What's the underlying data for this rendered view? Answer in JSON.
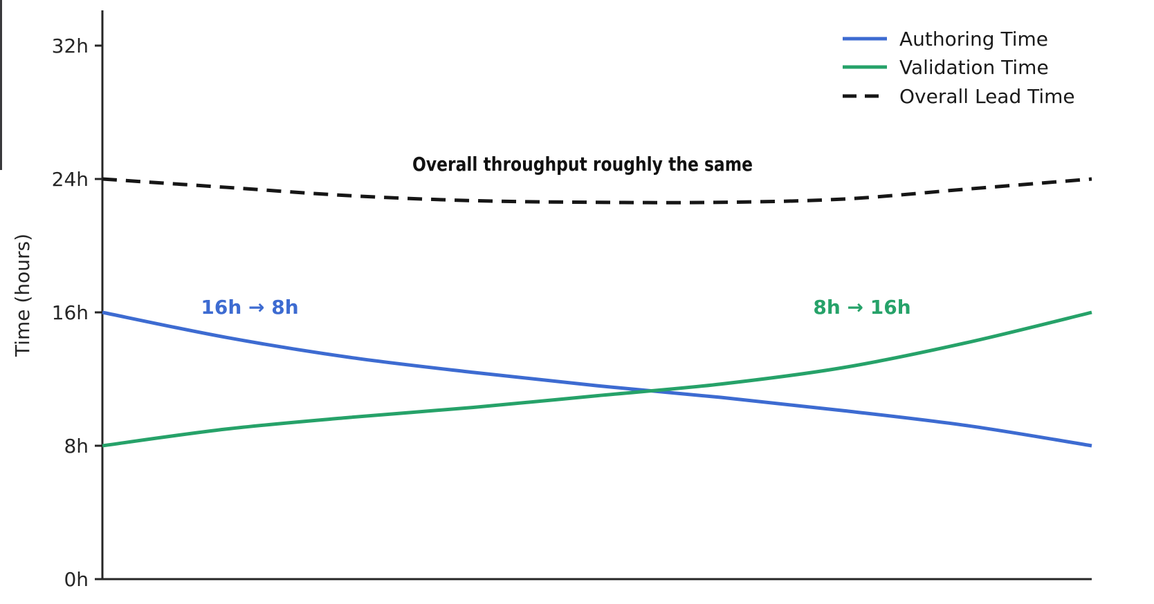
{
  "chart_data": {
    "type": "line",
    "title": "",
    "xlabel": "",
    "ylabel": "Time (hours)",
    "ylim": [
      0,
      34
    ],
    "grid": false,
    "x_tick_labels": [],
    "y_ticks": [
      {
        "value": 0,
        "label": "0h"
      },
      {
        "value": 8,
        "label": "8h"
      },
      {
        "value": 16,
        "label": "16h"
      },
      {
        "value": 24,
        "label": "24h"
      },
      {
        "value": 32,
        "label": "32h"
      }
    ],
    "x": [
      0,
      0.125,
      0.25,
      0.375,
      0.5,
      0.625,
      0.75,
      0.875,
      1
    ],
    "series": [
      {
        "name": "Authoring Time",
        "color": "#3d6bd1",
        "style": "solid",
        "values": [
          16,
          14.5,
          13.3,
          12.4,
          11.6,
          10.9,
          10.1,
          9.2,
          8
        ]
      },
      {
        "name": "Validation Time",
        "color": "#26a269",
        "style": "solid",
        "values": [
          8,
          9.0,
          9.7,
          10.3,
          11.0,
          11.7,
          12.7,
          14.2,
          16
        ]
      },
      {
        "name": "Overall Lead Time",
        "color": "#161616",
        "style": "dashed",
        "values": [
          24,
          23.5,
          23.0,
          22.7,
          22.6,
          22.6,
          22.8,
          23.4,
          24
        ]
      }
    ],
    "legend": {
      "position": "top-right",
      "frame": false
    },
    "annotations": [
      {
        "text": "Overall throughput roughly the same",
        "color": "#111111",
        "weight": "bold"
      },
      {
        "text": "16h → 8h",
        "color": "#3d6bd1",
        "weight": "bold"
      },
      {
        "text": "8h → 16h",
        "color": "#26a269",
        "weight": "bold"
      }
    ]
  },
  "colors": {
    "background": "#ffffff",
    "axis": "#262626",
    "legend_text": "#1a1a1a"
  }
}
